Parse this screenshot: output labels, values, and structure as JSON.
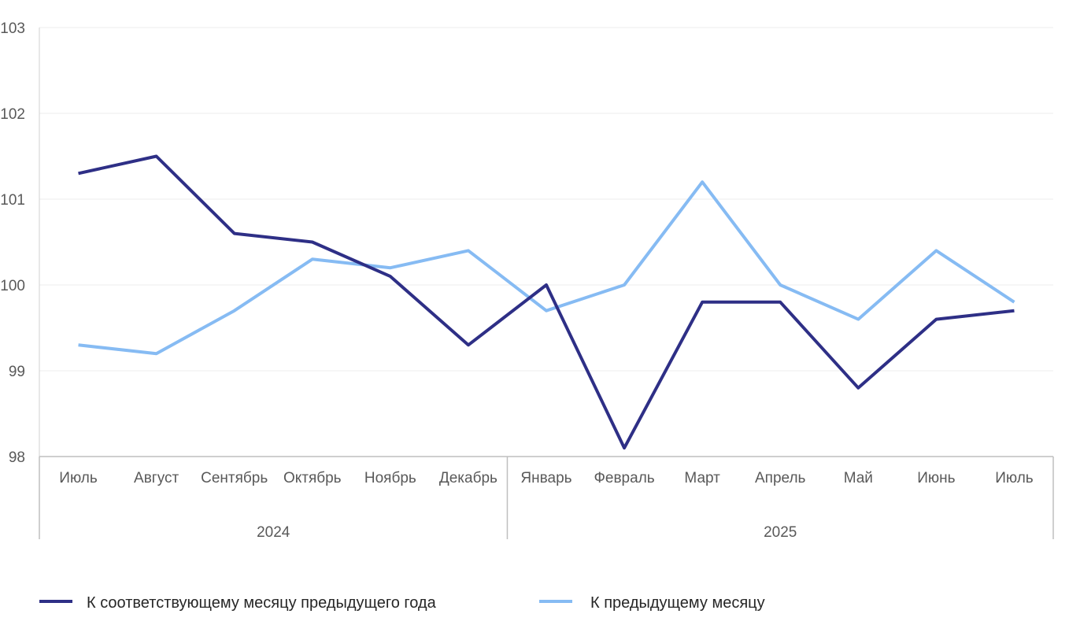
{
  "chart_data": {
    "type": "line",
    "title": "",
    "xlabel": "",
    "ylabel": "",
    "ylim": [
      98,
      103
    ],
    "yticks": [
      "98",
      "99",
      "100",
      "101",
      "102",
      "103"
    ],
    "grid": true,
    "categories": [
      "Июль",
      "Август",
      "Сентябрь",
      "Октябрь",
      "Ноябрь",
      "Декабрь",
      "Январь",
      "Февраль",
      "Март",
      "Апрель",
      "Май",
      "Июнь",
      "Июль"
    ],
    "groups": [
      {
        "label": "2024",
        "count": 6
      },
      {
        "label": "2025",
        "count": 7
      }
    ],
    "series": [
      {
        "name": "К соответствующему месяцу предыдущего года",
        "color": "#2e2f86",
        "values": [
          101.3,
          101.5,
          100.6,
          100.5,
          100.1,
          99.3,
          100.0,
          98.1,
          99.8,
          99.8,
          98.8,
          99.6,
          99.7
        ]
      },
      {
        "name": "К предыдущему месяцу",
        "color": "#86bbf3",
        "values": [
          99.3,
          99.2,
          99.7,
          100.3,
          100.2,
          100.4,
          99.7,
          100.0,
          101.2,
          100.0,
          99.6,
          100.4,
          99.8
        ]
      }
    ],
    "legend": "bottom"
  }
}
